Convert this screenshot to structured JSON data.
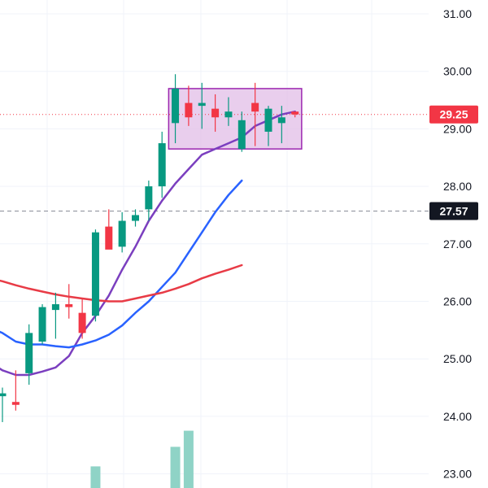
{
  "chart_data": {
    "type": "candlestick",
    "title": "",
    "xlabel": "",
    "ylabel": "",
    "ylim": [
      22.8,
      31.2
    ],
    "y_ticks": [
      "31.00",
      "30.00",
      "29.00",
      "28.00",
      "27.00",
      "26.00",
      "25.00",
      "24.00",
      "23.00"
    ],
    "grid": true,
    "candles": [
      {
        "o": 24.35,
        "h": 24.5,
        "l": 23.9,
        "c": 24.4
      },
      {
        "o": 24.25,
        "h": 24.8,
        "l": 24.1,
        "c": 24.2
      },
      {
        "o": 24.75,
        "h": 25.6,
        "l": 24.55,
        "c": 25.45
      },
      {
        "o": 25.3,
        "h": 25.95,
        "l": 25.25,
        "c": 25.9
      },
      {
        "o": 25.85,
        "h": 26.15,
        "l": 25.35,
        "c": 25.95
      },
      {
        "o": 25.95,
        "h": 26.3,
        "l": 25.7,
        "c": 25.9
      },
      {
        "o": 25.8,
        "h": 26.05,
        "l": 25.35,
        "c": 25.45
      },
      {
        "o": 25.75,
        "h": 27.25,
        "l": 25.65,
        "c": 27.2
      },
      {
        "o": 27.3,
        "h": 27.6,
        "l": 26.95,
        "c": 26.9
      },
      {
        "o": 26.95,
        "h": 27.55,
        "l": 26.85,
        "c": 27.4
      },
      {
        "o": 27.4,
        "h": 27.6,
        "l": 27.3,
        "c": 27.5
      },
      {
        "o": 27.6,
        "h": 28.1,
        "l": 27.4,
        "c": 28.0
      },
      {
        "o": 28.0,
        "h": 28.95,
        "l": 27.8,
        "c": 28.75
      },
      {
        "o": 29.1,
        "h": 29.95,
        "l": 28.75,
        "c": 29.7
      },
      {
        "o": 29.45,
        "h": 29.75,
        "l": 29.05,
        "c": 29.2
      },
      {
        "o": 29.4,
        "h": 29.8,
        "l": 29.0,
        "c": 29.45
      },
      {
        "o": 29.35,
        "h": 29.6,
        "l": 28.95,
        "c": 29.2
      },
      {
        "o": 29.2,
        "h": 29.55,
        "l": 29.05,
        "c": 29.3
      },
      {
        "o": 28.65,
        "h": 29.3,
        "l": 28.6,
        "c": 29.15
      },
      {
        "o": 29.45,
        "h": 29.8,
        "l": 28.7,
        "c": 29.3
      },
      {
        "o": 28.95,
        "h": 29.4,
        "l": 28.7,
        "c": 29.35
      },
      {
        "o": 29.1,
        "h": 29.4,
        "l": 28.75,
        "c": 29.2
      },
      {
        "o": 29.3,
        "h": 29.3,
        "l": 29.2,
        "c": 29.25
      }
    ],
    "volume": [
      {
        "index": 7,
        "value": 23.13
      },
      {
        "index": 13,
        "value": 23.47
      },
      {
        "index": 14,
        "value": 23.75
      }
    ],
    "series": [
      {
        "color": "#7b3fbf",
        "values": [
          {
            "x": -1,
            "y": 24.95
          },
          {
            "x": 0,
            "y": 24.8
          },
          {
            "x": 1,
            "y": 24.72
          },
          {
            "x": 2,
            "y": 24.72
          },
          {
            "x": 3,
            "y": 24.78
          },
          {
            "x": 4,
            "y": 24.85
          },
          {
            "x": 5,
            "y": 25.05
          },
          {
            "x": 6,
            "y": 25.45
          },
          {
            "x": 7,
            "y": 25.75
          },
          {
            "x": 8,
            "y": 26.1
          },
          {
            "x": 9,
            "y": 26.55
          },
          {
            "x": 10,
            "y": 26.95
          },
          {
            "x": 11,
            "y": 27.4
          },
          {
            "x": 12,
            "y": 27.75
          },
          {
            "x": 13,
            "y": 28.05
          },
          {
            "x": 14,
            "y": 28.3
          },
          {
            "x": 15,
            "y": 28.55
          },
          {
            "x": 16,
            "y": 28.65
          },
          {
            "x": 17,
            "y": 28.75
          },
          {
            "x": 18,
            "y": 28.85
          },
          {
            "x": 19,
            "y": 29.05
          },
          {
            "x": 20,
            "y": 29.15
          },
          {
            "x": 21,
            "y": 29.25
          },
          {
            "x": 22,
            "y": 29.3
          }
        ]
      },
      {
        "color": "#2962ff",
        "values": [
          {
            "x": -1,
            "y": 25.55
          },
          {
            "x": 0,
            "y": 25.45
          },
          {
            "x": 1,
            "y": 25.3
          },
          {
            "x": 2,
            "y": 25.25
          },
          {
            "x": 3,
            "y": 25.25
          },
          {
            "x": 4,
            "y": 25.22
          },
          {
            "x": 5,
            "y": 25.2
          },
          {
            "x": 6,
            "y": 25.25
          },
          {
            "x": 7,
            "y": 25.32
          },
          {
            "x": 8,
            "y": 25.42
          },
          {
            "x": 9,
            "y": 25.58
          },
          {
            "x": 10,
            "y": 25.8
          },
          {
            "x": 11,
            "y": 26.0
          },
          {
            "x": 12,
            "y": 26.25
          },
          {
            "x": 13,
            "y": 26.5
          },
          {
            "x": 14,
            "y": 26.85
          },
          {
            "x": 15,
            "y": 27.2
          },
          {
            "x": 16,
            "y": 27.55
          },
          {
            "x": 17,
            "y": 27.85
          },
          {
            "x": 18,
            "y": 28.1
          }
        ]
      },
      {
        "color": "#e83b46",
        "values": [
          {
            "x": -1,
            "y": 26.4
          },
          {
            "x": 0,
            "y": 26.35
          },
          {
            "x": 1,
            "y": 26.28
          },
          {
            "x": 2,
            "y": 26.22
          },
          {
            "x": 3,
            "y": 26.17
          },
          {
            "x": 4,
            "y": 26.12
          },
          {
            "x": 5,
            "y": 26.08
          },
          {
            "x": 6,
            "y": 26.05
          },
          {
            "x": 7,
            "y": 26.02
          },
          {
            "x": 8,
            "y": 26.0
          },
          {
            "x": 9,
            "y": 26.0
          },
          {
            "x": 10,
            "y": 26.05
          },
          {
            "x": 11,
            "y": 26.1
          },
          {
            "x": 12,
            "y": 26.15
          },
          {
            "x": 13,
            "y": 26.22
          },
          {
            "x": 14,
            "y": 26.3
          },
          {
            "x": 15,
            "y": 26.4
          },
          {
            "x": 16,
            "y": 26.48
          },
          {
            "x": 17,
            "y": 26.55
          },
          {
            "x": 18,
            "y": 26.63
          }
        ]
      }
    ],
    "rectangle": {
      "x_from": 12.5,
      "x_to": 22.5,
      "y_from": 28.65,
      "y_to": 29.7,
      "stroke": "#9c27b0",
      "fill": "#e1bee7"
    },
    "last_price": {
      "value": 29.25,
      "label": "29.25",
      "color": "#f23645"
    },
    "crosshair": {
      "value": 27.57,
      "label": "27.57",
      "color": "#131722"
    }
  },
  "colors": {
    "up": "#089981",
    "down": "#f23645",
    "volume": "#8fd3c6",
    "grid": "#f0f3fa"
  }
}
